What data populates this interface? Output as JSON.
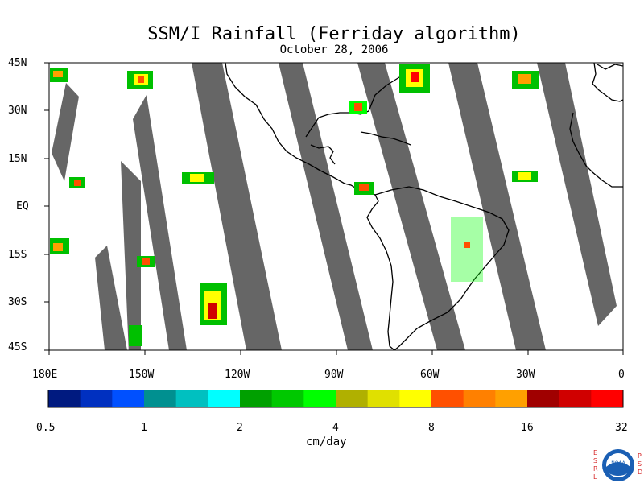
{
  "title": "SSM/I Rainfall (Ferriday algorithm)",
  "subtitle": "October 28, 2006",
  "latitude_labels": [
    "45N",
    "30N",
    "15N",
    "EQ",
    "15S",
    "30S",
    "45S"
  ],
  "longitude_labels": [
    "180E",
    "150W",
    "120W",
    "90W",
    "60W",
    "30W",
    "0"
  ],
  "colorbar": {
    "unit": "cm/day",
    "tick_labels": [
      "0.5",
      "1",
      "2",
      "4",
      "8",
      "16",
      "32"
    ],
    "colors": [
      "#001a80",
      "#0030c0",
      "#0050ff",
      "#009090",
      "#00c0c0",
      "#00ffff",
      "#00a000",
      "#00c800",
      "#00ff00",
      "#b0b000",
      "#e0e000",
      "#ffff00",
      "#ff5000",
      "#ff8000",
      "#ffa000",
      "#a00000",
      "#d00000",
      "#ff0000"
    ]
  },
  "map_colors": {
    "swath_gap": "#666666",
    "land_outline": "#000000",
    "background": "#ffffff"
  },
  "logo": {
    "left_letters": [
      "E",
      "S",
      "R",
      "L"
    ],
    "right_letters": [
      "P",
      "S",
      "D"
    ],
    "center": "NOAA"
  }
}
